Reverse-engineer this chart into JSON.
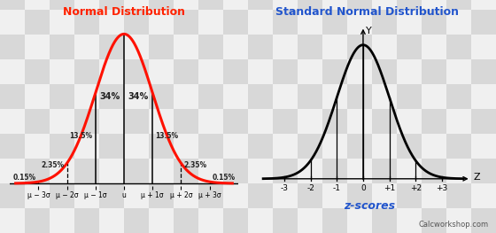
{
  "title_left": "Normal Distribution",
  "title_right": "Standard Normal Distribution",
  "title_left_color": "#ff2200",
  "title_right_color": "#2255cc",
  "left_tick_labels": [
    "μ − 3σ",
    "μ − 2σ",
    "μ − 1σ",
    "u",
    "μ + 1σ",
    "μ + 2σ",
    "μ + 3σ"
  ],
  "right_tick_labels": [
    "-3",
    "-2",
    "-1",
    "0",
    "+1",
    "+2",
    "+3"
  ],
  "z_label": "z-scores",
  "z_label_color": "#2255cc",
  "calcworkshop": "Calcworkshop.com",
  "curve_color_left": "#ff1100",
  "curve_color_right": "#000000",
  "vline_color": "#000000",
  "checker_light": "#f0f0f0",
  "checker_dark": "#d8d8d8",
  "checker_size": 28
}
